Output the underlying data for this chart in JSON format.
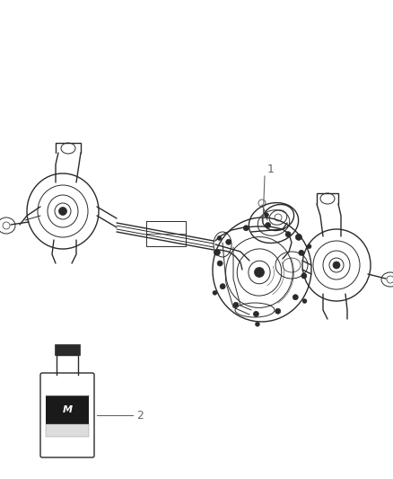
{
  "bg_color": "#ffffff",
  "line_color": "#2a2a2a",
  "label_color": "#666666",
  "figsize": [
    4.38,
    5.33
  ],
  "dpi": 100,
  "item1_label": "1",
  "item2_label": "2"
}
